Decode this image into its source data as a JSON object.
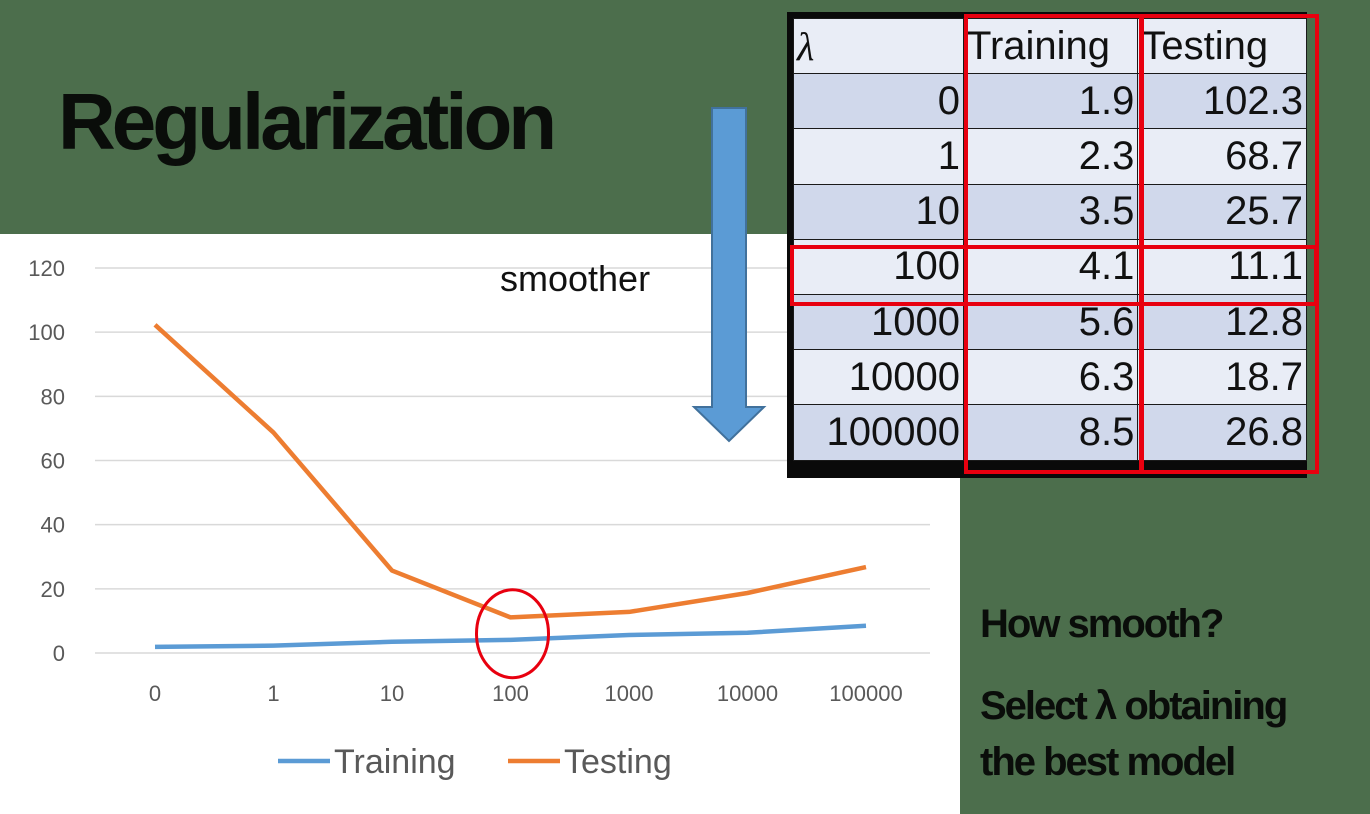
{
  "slide": {
    "title": "Regularization",
    "arrow_label": "smoother",
    "notes": [
      "How smooth?",
      "Select λ obtaining",
      "the best model"
    ]
  },
  "table": {
    "headers": [
      "λ",
      "Training",
      "Testing"
    ],
    "rows": [
      [
        "0",
        "1.9",
        "102.3"
      ],
      [
        "1",
        "2.3",
        "68.7"
      ],
      [
        "10",
        "3.5",
        "25.7"
      ],
      [
        "100",
        "4.1",
        "11.1"
      ],
      [
        "1000",
        "5.6",
        "12.8"
      ],
      [
        "10000",
        "6.3",
        "18.7"
      ],
      [
        "100000",
        "8.5",
        "26.8"
      ]
    ]
  },
  "colors": {
    "training": "#5b9bd5",
    "testing": "#ed7d31",
    "highlight": "#e8000f",
    "arrow": "#5b9bd5"
  },
  "chart_data": {
    "type": "line",
    "categories": [
      "0",
      "1",
      "10",
      "100",
      "1000",
      "10000",
      "100000"
    ],
    "series": [
      {
        "name": "Training",
        "values": [
          1.9,
          2.3,
          3.5,
          4.1,
          5.6,
          6.3,
          8.5
        ]
      },
      {
        "name": "Testing",
        "values": [
          102.3,
          68.7,
          25.7,
          11.1,
          12.8,
          18.7,
          26.8
        ]
      }
    ],
    "ylim": [
      0,
      120
    ],
    "yticks": [
      0,
      20,
      40,
      60,
      80,
      100,
      120
    ],
    "grid": true,
    "legend": "bottom",
    "highlight_category": "100"
  }
}
